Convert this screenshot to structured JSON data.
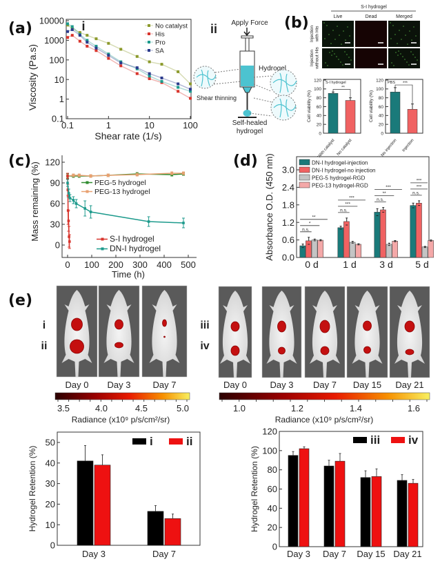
{
  "panels": {
    "a": "(a)",
    "b": "(b)",
    "c": "(c)",
    "d": "(d)",
    "e": "(e)"
  },
  "diagram": {
    "label": "ii",
    "apply_force": "Apply Force",
    "hydrogel": "Hydrogel",
    "shear_thinning": "Shear thinning",
    "self_healed_1": "Self-healed",
    "self_healed_2": "hydrogel",
    "colors": {
      "gel": "#4cc3d0"
    }
  },
  "microscopy": {
    "title": "S-I hydrogel",
    "columns": [
      "Live",
      "Dead",
      "Merged"
    ],
    "rows": [
      "Injection with His",
      "Injection without His"
    ]
  },
  "mice": {
    "left": {
      "rows": [
        "i",
        "ii"
      ],
      "days": [
        "Day 0",
        "Day 3",
        "Day 7"
      ]
    },
    "right": {
      "rows": [
        "iii",
        "iv"
      ],
      "days": [
        "Day 0",
        "Day 3",
        "Day 7",
        "Day 15",
        "Day 21"
      ]
    },
    "colorbars": [
      {
        "ticks": [
          "3.5",
          "4.0",
          "4.5",
          "5.0"
        ],
        "label": "Radiance (x10⁹ p/s/cm²/sr)"
      },
      {
        "ticks": [
          "1.0",
          "1.2",
          "1.4",
          "1.6"
        ],
        "label": "Radiance (x10⁹ p/s/cm²/sr)"
      }
    ]
  },
  "chart_data": [
    {
      "type": "scatter",
      "subpanel": "i",
      "xlabel": "Shear rate (1/s)",
      "ylabel": "Viscosity (Pa.s)",
      "xscale": "log",
      "yscale": "log",
      "xlim": [
        0.1,
        100
      ],
      "ylim": [
        0.1,
        10000
      ],
      "xticks": [
        "0.1",
        "1",
        "10",
        "100"
      ],
      "yticks": [
        "0.1",
        "1",
        "10",
        "100",
        "1000",
        "10000"
      ],
      "legend": "top-right",
      "x": [
        0.1,
        0.13,
        0.2,
        0.3,
        0.5,
        1,
        2,
        5,
        10,
        20,
        50,
        100
      ],
      "series": [
        {
          "name": "No catalyst",
          "color": "#8c9a2c",
          "values": [
            6000,
            4000,
            2500,
            1800,
            1200,
            700,
            350,
            150,
            80,
            60,
            25,
            6
          ]
        },
        {
          "name": "His",
          "color": "#d8342c",
          "values": [
            1400,
            1800,
            900,
            500,
            300,
            120,
            50,
            20,
            11,
            7,
            2.5,
            1.1
          ]
        },
        {
          "name": "Pro",
          "color": "#1c9a8c",
          "values": [
            7000,
            5000,
            2000,
            1000,
            500,
            200,
            80,
            35,
            15,
            8,
            4,
            2.5
          ]
        },
        {
          "name": "SA",
          "color": "#2a3a8c",
          "values": [
            2800,
            3500,
            1800,
            800,
            400,
            170,
            70,
            40,
            20,
            12,
            6,
            3.2
          ]
        }
      ]
    },
    {
      "type": "bar",
      "inset": "S-I hydrogel",
      "ylabel": "Cell viability (%)",
      "ylim": [
        0,
        120
      ],
      "yticks": [
        "0",
        "20",
        "40",
        "60",
        "80",
        "100",
        "120"
      ],
      "categories": [
        "With catalyst",
        "No catalyst"
      ],
      "values": [
        90,
        74
      ],
      "errors": [
        3,
        6
      ],
      "colors": [
        "#1a7a7a",
        "#f06262"
      ],
      "significance": "**"
    },
    {
      "type": "bar",
      "inset": "PBS",
      "ylabel": "Cell viability (%)",
      "ylim": [
        0,
        120
      ],
      "yticks": [
        "0",
        "20",
        "40",
        "60",
        "80",
        "100",
        "120"
      ],
      "categories": [
        "No injection",
        "Injection"
      ],
      "values": [
        93,
        54
      ],
      "errors": [
        10,
        12
      ],
      "colors": [
        "#1a7a7a",
        "#f06262"
      ],
      "significance": "***"
    },
    {
      "type": "line",
      "xlabel": "Time (h)",
      "ylabel": "Mass remaining  (%)",
      "xlim": [
        -15,
        530
      ],
      "ylim": [
        -15,
        130
      ],
      "xticks": [
        "0",
        "100",
        "200",
        "300",
        "400",
        "500"
      ],
      "yticks": [
        "0",
        "30",
        "60",
        "90",
        "120"
      ],
      "series": [
        {
          "name": "PEG-5 hydrogel",
          "color": "#2e8b2e",
          "x": [
            0,
            24,
            48,
            96,
            168,
            288,
            432,
            480
          ],
          "values": [
            100,
            100,
            100,
            100,
            101,
            103,
            102,
            103
          ],
          "errors": [
            3,
            2,
            2,
            2,
            2,
            2,
            2,
            2
          ]
        },
        {
          "name": "PEG-13 hydrogel",
          "color": "#e8a070",
          "x": [
            0,
            24,
            48,
            96,
            168,
            288,
            432,
            480
          ],
          "values": [
            100,
            101,
            101,
            100,
            101,
            102,
            104,
            104
          ],
          "errors": [
            4,
            2,
            2,
            2,
            2,
            2,
            2,
            2
          ]
        },
        {
          "name": "S-I hydrogel",
          "color": "#d8342c",
          "x": [
            0,
            1,
            2,
            4,
            6,
            8
          ],
          "values": [
            100,
            80,
            50,
            35,
            12,
            5
          ],
          "errors": [
            4,
            8,
            20,
            15,
            15,
            10
          ]
        },
        {
          "name": "DN-I hydrogel",
          "color": "#1c9a8c",
          "x": [
            0,
            5,
            10,
            24,
            36,
            72,
            96,
            336,
            480
          ],
          "values": [
            90,
            75,
            68,
            65,
            60,
            53,
            48,
            34,
            32
          ],
          "errors": [
            5,
            6,
            5,
            5,
            6,
            11,
            9,
            7,
            7
          ]
        }
      ]
    },
    {
      "type": "bar",
      "ylabel": "Absorbance O.D. (450 nm)",
      "ylim": [
        0,
        3.0
      ],
      "yticks": [
        "0.0",
        "0.6",
        "1.2",
        "1.8",
        "2.4",
        "3.0"
      ],
      "categories": [
        "0 d",
        "1 d",
        "3 d",
        "5 d"
      ],
      "legend": "top-left",
      "series": [
        {
          "name": "DN-I hydrogel-injection",
          "color": "#1a7a7a",
          "values": [
            0.4,
            1.02,
            1.55,
            1.78
          ],
          "errors": [
            0.06,
            0.05,
            0.12,
            0.08
          ]
        },
        {
          "name": "DN-I hydrogel-no injection",
          "color": "#f06262",
          "values": [
            0.57,
            1.23,
            1.63,
            1.86
          ],
          "errors": [
            0.12,
            0.12,
            0.08,
            0.08
          ]
        },
        {
          "name": "PEG-5 hydrogel-RGD",
          "color": "#c4c4c4",
          "values": [
            0.6,
            0.52,
            0.45,
            0.36
          ],
          "errors": [
            0.03,
            0.03,
            0.04,
            0.02
          ]
        },
        {
          "name": "PEG-13 hydrogel-RGD",
          "color": "#f4a8a8",
          "values": [
            0.59,
            0.45,
            0.56,
            0.58
          ],
          "errors": [
            0.02,
            0.02,
            0.02,
            0.02
          ]
        }
      ],
      "significance": [
        [
          "n.s.",
          "*",
          "**"
        ],
        [
          "n.s.",
          "***",
          "***"
        ],
        [
          "n.s.",
          "**",
          "***"
        ],
        [
          "n.s.",
          "***",
          "***"
        ]
      ]
    },
    {
      "type": "bar",
      "ylabel": "Hydrogel Retention (%)",
      "ylim": [
        0,
        55
      ],
      "yticks": [
        "0",
        "10",
        "20",
        "30",
        "40",
        "50"
      ],
      "categories": [
        "Day 3",
        "Day 7"
      ],
      "legend": "top-right",
      "series": [
        {
          "name": "i",
          "color": "#000000",
          "values": [
            41,
            16.5
          ],
          "errors": [
            7.5,
            2.8
          ]
        },
        {
          "name": "ii",
          "color": "#ee1111",
          "values": [
            39,
            13
          ],
          "errors": [
            5,
            2.2
          ]
        }
      ]
    },
    {
      "type": "bar",
      "ylabel": "Hydrogel Retention (%)",
      "ylim": [
        0,
        120
      ],
      "yticks": [
        "0",
        "20",
        "40",
        "60",
        "80",
        "100",
        "120"
      ],
      "categories": [
        "Day 3",
        "Day 7",
        "Day 15",
        "Day 21"
      ],
      "legend": "top-right",
      "series": [
        {
          "name": "iii",
          "color": "#000000",
          "values": [
            95,
            84,
            72,
            69
          ],
          "errors": [
            4,
            6,
            7,
            6
          ]
        },
        {
          "name": "iv",
          "color": "#ee1111",
          "values": [
            102,
            89,
            73,
            66
          ],
          "errors": [
            2,
            8,
            8,
            4
          ]
        }
      ]
    }
  ]
}
